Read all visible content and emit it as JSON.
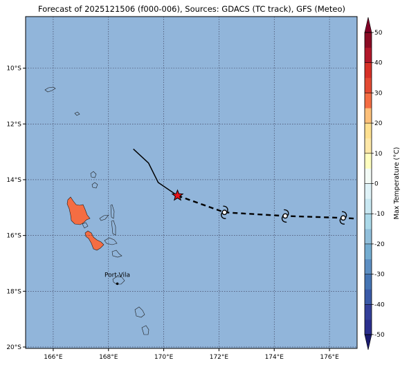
{
  "title": "Forecast of 2025121506 (f000-006), Sources: GDACS (TC track), GFS (Meteo)",
  "map": {
    "lon_range": [
      165.0,
      177.0
    ],
    "lat_range": [
      -20.05,
      -8.15
    ],
    "x_ticks": [
      {
        "value": 166,
        "label": "166°E"
      },
      {
        "value": 168,
        "label": "168°E"
      },
      {
        "value": 170,
        "label": "170°E"
      },
      {
        "value": 172,
        "label": "172°E"
      },
      {
        "value": 174,
        "label": "174°E"
      },
      {
        "value": 176,
        "label": "176°E"
      }
    ],
    "y_ticks": [
      {
        "value": -10,
        "label": "10°S"
      },
      {
        "value": -12,
        "label": "12°S"
      },
      {
        "value": -14,
        "label": "14°S"
      },
      {
        "value": -16,
        "label": "16°S"
      },
      {
        "value": -18,
        "label": "18°S"
      },
      {
        "value": -20,
        "label": "20°S"
      }
    ],
    "grid": "dotted",
    "ocean_color": "#91b5da",
    "land_color": "#f46d43",
    "city": {
      "name": "Port-Vila",
      "lon": 168.32,
      "lat": -17.73
    },
    "past_track": [
      [
        168.9,
        -12.9
      ],
      [
        169.45,
        -13.4
      ],
      [
        169.8,
        -14.1
      ],
      [
        170.5,
        -14.57
      ]
    ],
    "forecast_track": [
      [
        170.5,
        -14.57
      ],
      [
        172.2,
        -15.17
      ],
      [
        174.4,
        -15.3
      ],
      [
        176.5,
        -15.37
      ],
      [
        177.0,
        -15.4
      ]
    ],
    "current_position": {
      "lon": 170.5,
      "lat": -14.57,
      "marker": "red-star-icon"
    },
    "forecast_positions": [
      {
        "lon": 172.2,
        "lat": -15.17,
        "marker": "cyclone-icon"
      },
      {
        "lon": 174.4,
        "lat": -15.3,
        "marker": "cyclone-icon"
      },
      {
        "lon": 176.5,
        "lat": -15.37,
        "marker": "cyclone-icon"
      }
    ]
  },
  "colorbar": {
    "label": "Max Temperature (°C)",
    "ticks": [
      50,
      40,
      30,
      20,
      10,
      0,
      -10,
      -20,
      -30,
      -40,
      -50
    ],
    "levels": [
      {
        "from": -50,
        "to": -45,
        "color": "#2b2f8e"
      },
      {
        "from": -45,
        "to": -40,
        "color": "#33409a"
      },
      {
        "from": -40,
        "to": -35,
        "color": "#3a5aa8"
      },
      {
        "from": -35,
        "to": -30,
        "color": "#4575b4"
      },
      {
        "from": -30,
        "to": -25,
        "color": "#5d8fc3"
      },
      {
        "from": -25,
        "to": -20,
        "color": "#74add1"
      },
      {
        "from": -20,
        "to": -15,
        "color": "#91bfdb"
      },
      {
        "from": -15,
        "to": -10,
        "color": "#abd9e9"
      },
      {
        "from": -10,
        "to": -5,
        "color": "#c9e8f2"
      },
      {
        "from": -5,
        "to": 0,
        "color": "#e0f3f8"
      },
      {
        "from": 0,
        "to": 5,
        "color": "#f3fbf6"
      },
      {
        "from": 5,
        "to": 10,
        "color": "#ffffbf"
      },
      {
        "from": 10,
        "to": 15,
        "color": "#fee8a8"
      },
      {
        "from": 15,
        "to": 20,
        "color": "#fee090"
      },
      {
        "from": 20,
        "to": 25,
        "color": "#fdc07a"
      },
      {
        "from": 25,
        "to": 30,
        "color": "#f46d43"
      },
      {
        "from": 30,
        "to": 35,
        "color": "#e34a33"
      },
      {
        "from": 35,
        "to": 40,
        "color": "#d73027"
      },
      {
        "from": 40,
        "to": 45,
        "color": "#b2182b"
      },
      {
        "from": 45,
        "to": 50,
        "color": "#8a0b24"
      }
    ],
    "min_extend_color": "#1a1a6e",
    "max_extend_color": "#800026"
  }
}
